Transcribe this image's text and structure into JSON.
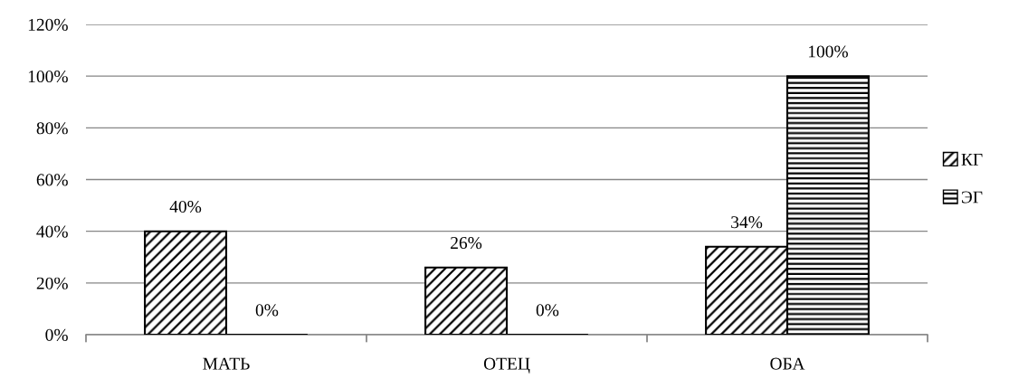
{
  "chart_data": {
    "type": "bar",
    "categories": [
      "МАТЬ",
      "ОТЕЦ",
      "ОБА"
    ],
    "series": [
      {
        "name": "КГ",
        "color": "#000000",
        "values": [
          40,
          26,
          34
        ],
        "value_labels": [
          "40%",
          "26%",
          "34%"
        ]
      },
      {
        "name": "ЭГ",
        "color": "#000000",
        "values": [
          0,
          0,
          100
        ],
        "value_labels": [
          "0%",
          "0%",
          "100%"
        ]
      }
    ],
    "ylim": [
      0,
      120
    ],
    "yticks": [
      {
        "value": 0,
        "label": "0%"
      },
      {
        "value": 20,
        "label": "20%"
      },
      {
        "value": 40,
        "label": "40%"
      },
      {
        "value": 60,
        "label": "60%"
      },
      {
        "value": 80,
        "label": "80%"
      },
      {
        "value": 100,
        "label": "100%"
      },
      {
        "value": 120,
        "label": "120%"
      }
    ],
    "grid": "y",
    "legend": "right"
  }
}
